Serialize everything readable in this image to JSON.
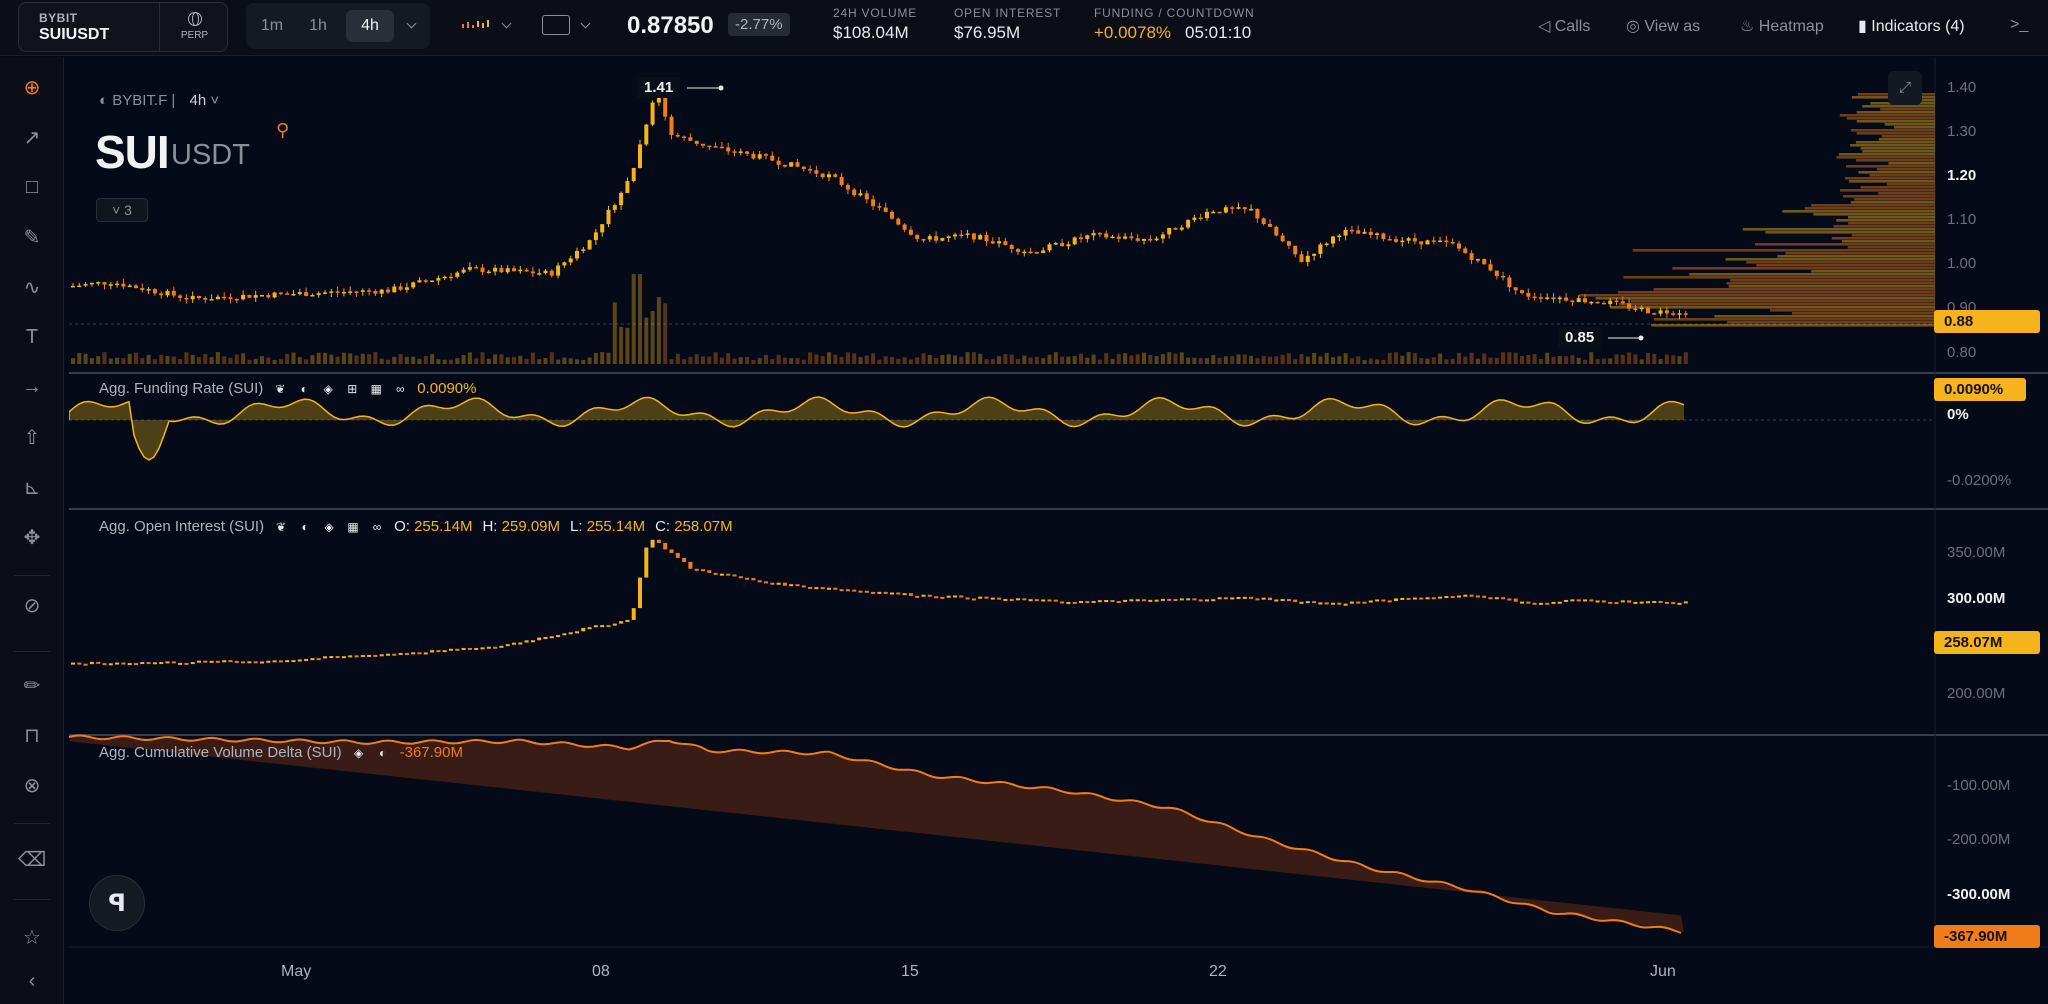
{
  "header": {
    "exchange": "BYBIT",
    "pair": "SUIUSDT",
    "contract": "PERP",
    "timeframes": [
      "1m",
      "1h",
      "4h"
    ],
    "active_timeframe": "4h",
    "last_price": "0.87850",
    "change_pct": "-2.77%",
    "volume_label": "24H VOLUME",
    "volume_value": "$108.04M",
    "oi_label": "OPEN INTEREST",
    "oi_value": "$76.95M",
    "funding_label": "FUNDING / COUNTDOWN",
    "funding_value": "+0.0078%",
    "countdown": "05:01:10",
    "calls_label": "Calls",
    "view_as_label": "View as",
    "heatmap_label": "Heatmap",
    "indicators_label": "Indicators (4)",
    "overflow_label": ">_"
  },
  "chart": {
    "source": "BYBIT.F",
    "source_sep": "|",
    "timeframe": "4h",
    "base": "SUI",
    "quote": "USDT",
    "collapsed_count": "3",
    "high_annotation": "1.41",
    "low_annotation": "0.85",
    "price_axis": [
      "1.40",
      "1.30",
      "1.20",
      "1.10",
      "1.00",
      "0.90",
      "0.80"
    ],
    "price_axis_bold": "1.20",
    "current_price_tag": "0.88",
    "time_axis": [
      "May",
      "08",
      "15",
      "22",
      "Jun"
    ]
  },
  "funding": {
    "title": "Agg. Funding Rate (SUI)",
    "value": "0.0090%",
    "axis": [
      "0%",
      "-0.0200%"
    ],
    "tag": "0.0090%"
  },
  "open_interest": {
    "title": "Agg. Open Interest (SUI)",
    "o_label": "O:",
    "o": "255.14M",
    "h_label": "H:",
    "h": "259.09M",
    "l_label": "L:",
    "l": "255.14M",
    "c_label": "C:",
    "c": "258.07M",
    "axis": [
      "350.00M",
      "300.00M",
      "200.00M"
    ],
    "axis_bold": "300.00M",
    "tag": "258.07M"
  },
  "cvd": {
    "title": "Agg. Cumulative Volume Delta (SUI)",
    "value": "-367.90M",
    "axis": [
      "-100.00M",
      "-200.00M",
      "-300.00M"
    ],
    "axis_bold": "-300.00M",
    "tag": "-367.90M"
  },
  "colors": {
    "bg": "#050a18",
    "up": "#f5b41b",
    "down": "#f07d1a",
    "tag_orange": "#f07d1a",
    "tag_yellow": "#f5b41b"
  },
  "icons": [
    "crosshair-icon",
    "trendline-icon",
    "rectangle-icon",
    "brush-icon",
    "wave-icon",
    "text-icon",
    "arrow-icon",
    "upload-icon",
    "measure-icon",
    "move-icon",
    "ruler-icon",
    "pencil-icon",
    "lock-icon",
    "eye-off-icon",
    "trash-icon",
    "star-icon",
    "collapse-icon"
  ]
}
